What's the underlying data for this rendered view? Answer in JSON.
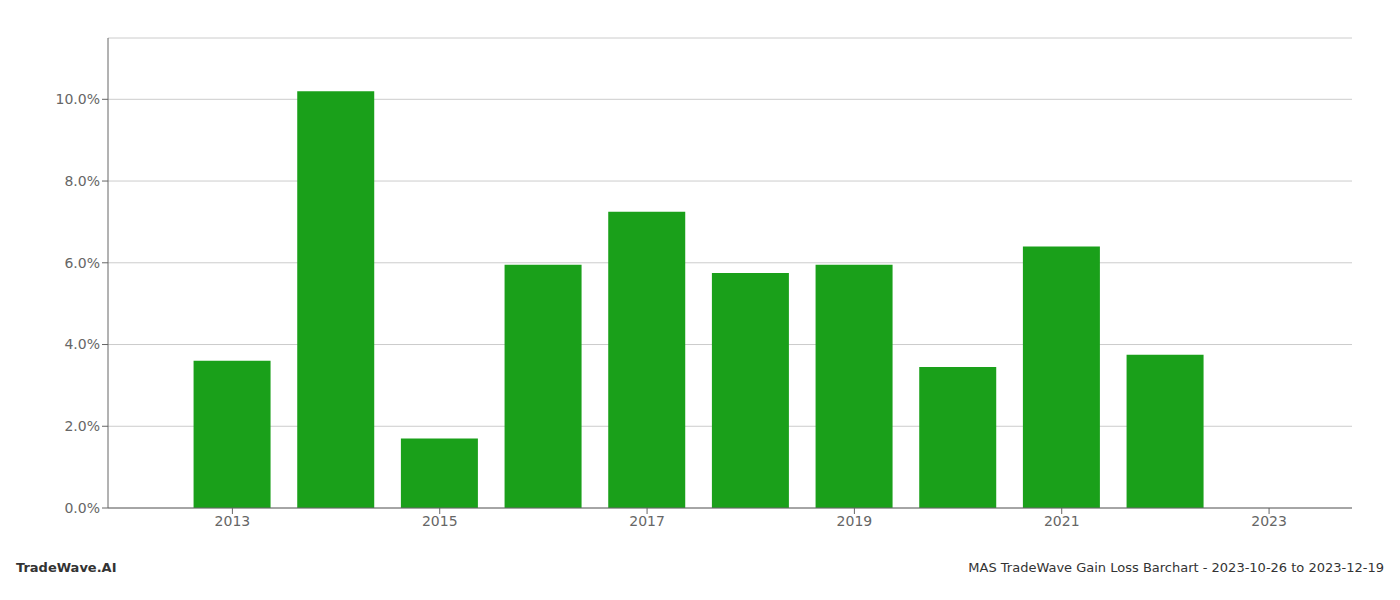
{
  "chart_data": {
    "type": "bar",
    "x": [
      2013,
      2014,
      2015,
      2016,
      2017,
      2018,
      2019,
      2020,
      2021,
      2022
    ],
    "values": [
      0.036,
      0.102,
      0.017,
      0.0595,
      0.0725,
      0.0575,
      0.0595,
      0.0345,
      0.064,
      0.0375
    ],
    "color": "#1aa01a",
    "xlim": [
      2011.8,
      2023.8
    ],
    "xticks": [
      2013,
      2015,
      2017,
      2019,
      2021,
      2023
    ],
    "ylim": [
      0,
      0.115
    ],
    "yticks": [
      {
        "value": 0.0,
        "label": "0.0%"
      },
      {
        "value": 0.02,
        "label": "2.0%"
      },
      {
        "value": 0.04,
        "label": "4.0%"
      },
      {
        "value": 0.06,
        "label": "6.0%"
      },
      {
        "value": 0.08,
        "label": "8.0%"
      },
      {
        "value": 0.1,
        "label": "10.0%"
      }
    ],
    "grid": true,
    "annotations": [
      "TradeWave.AI",
      "MAS TradeWave Gain Loss Barchart - 2023-10-26 to 2023-12-19"
    ]
  }
}
